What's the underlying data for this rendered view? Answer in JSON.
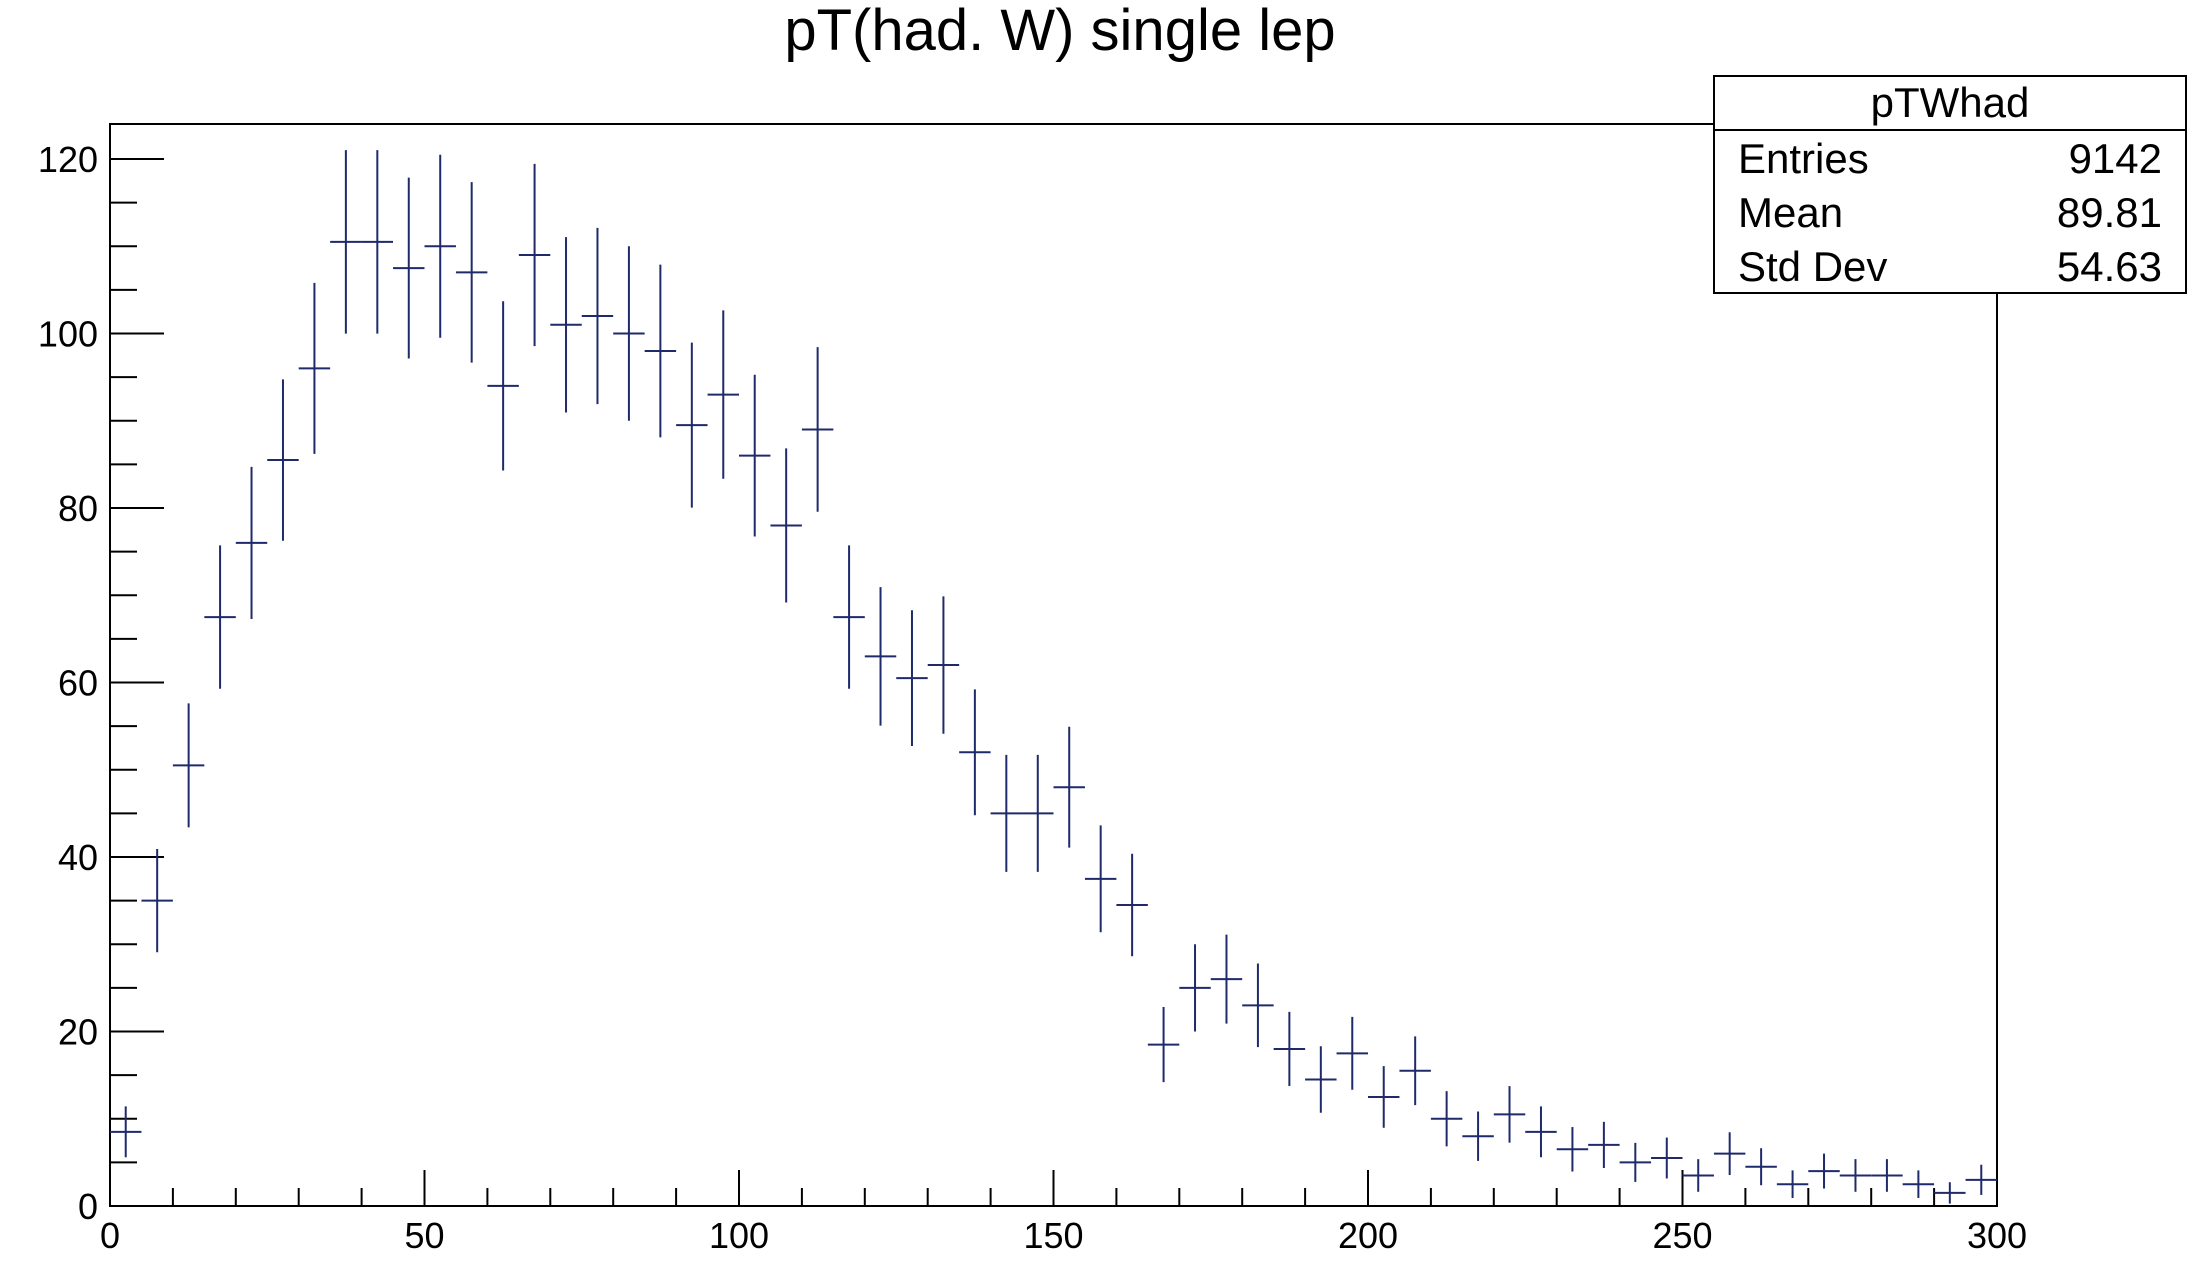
{
  "chart_data": {
    "type": "scatter",
    "title": "pT(had. W) single lep",
    "xlabel": "",
    "ylabel": "",
    "xlim": [
      0,
      300
    ],
    "ylim": [
      0,
      125
    ],
    "x_ticks": [
      "0",
      "50",
      "100",
      "150",
      "200",
      "250",
      "300"
    ],
    "y_ticks": [
      "0",
      "20",
      "40",
      "60",
      "80",
      "100",
      "120"
    ],
    "grid": false,
    "bin_width": 5,
    "marker_color": "#1f2a6b",
    "series": [
      {
        "x": [
          2.5,
          7.5,
          12.5,
          17.5,
          22.5,
          27.5,
          32.5,
          37.5,
          42.5,
          47.5,
          52.5,
          57.5,
          62.5,
          67.5,
          72.5,
          77.5,
          82.5,
          87.5,
          92.5,
          97.5,
          102.5,
          107.5,
          112.5,
          117.5,
          122.5,
          127.5,
          132.5,
          137.5,
          142.5,
          147.5,
          152.5,
          157.5,
          162.5,
          167.5,
          172.5,
          177.5,
          182.5,
          187.5,
          192.5,
          197.5,
          202.5,
          207.5,
          212.5,
          217.5,
          222.5,
          227.5,
          232.5,
          237.5,
          242.5,
          247.5,
          252.5,
          257.5,
          262.5,
          267.5,
          272.5,
          277.5,
          282.5,
          287.5,
          292.5,
          297.5
        ],
        "values": [
          8.5,
          35,
          50.5,
          67.5,
          76,
          85.5,
          96,
          110.5,
          110.5,
          107.5,
          110,
          107,
          94,
          109,
          101,
          102,
          100,
          98,
          89.5,
          93,
          86,
          78,
          89,
          67.5,
          63,
          60.5,
          62,
          52,
          45,
          45,
          48,
          37.5,
          34.5,
          18.5,
          25,
          26,
          23,
          18,
          14.5,
          17.5,
          12.5,
          15.5,
          10,
          8,
          10.5,
          8.5,
          6.5,
          7,
          5,
          5.5,
          3.5,
          6,
          4.5,
          2.5,
          4,
          3.5,
          3.5,
          2.5,
          1.5,
          3
        ]
      }
    ],
    "legend": {
      "placement": "top-right",
      "name": "pTWhad",
      "rows": [
        {
          "label": "Entries",
          "value": "9142"
        },
        {
          "label": "Mean",
          "value": "89.81"
        },
        {
          "label": "Std Dev",
          "value": "54.63"
        }
      ]
    }
  }
}
